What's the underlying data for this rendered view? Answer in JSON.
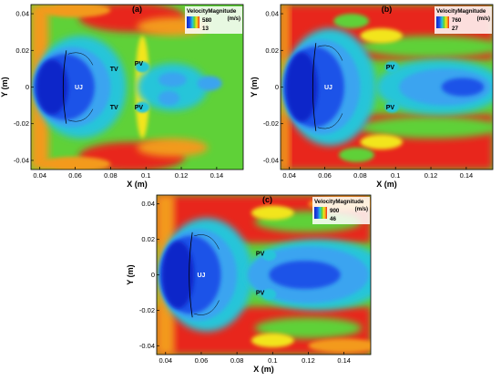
{
  "figure": {
    "palette": {
      "red": "#e8261f",
      "orange": "#f39a1b",
      "yellow": "#f2e51b",
      "green": "#5fd138",
      "cyan": "#27c5d9",
      "light_blue": "#3aa4f0",
      "blue": "#1f52e8",
      "dark_blue": "#0d27c9"
    }
  },
  "chart_data": [
    {
      "type": "heatmap",
      "panel_label": "(a)",
      "xlabel": "X (m)",
      "ylabel": "Y (m)",
      "xlim": [
        0.035,
        0.155
      ],
      "ylim": [
        -0.045,
        0.045
      ],
      "x_ticks": [
        0.04,
        0.06,
        0.08,
        0.1,
        0.12,
        0.14
      ],
      "x_tick_labels": [
        "0.04",
        "0.06",
        "0.08",
        "0.1",
        "0.12",
        "0.14"
      ],
      "y_ticks": [
        0.04,
        0.02,
        0,
        -0.02,
        -0.04
      ],
      "y_tick_labels": [
        "0.04",
        "0.02",
        "0",
        "-0.02",
        "-0.04"
      ],
      "legend": {
        "title": "VelocityMagnitude",
        "unit": "(m/s)",
        "max": "580",
        "min": "13",
        "placement": "top-right"
      },
      "annotations": [
        {
          "text": "UJ",
          "x": 0.062,
          "y": 0.0
        },
        {
          "text": "TV",
          "x": 0.082,
          "y": 0.01
        },
        {
          "text": "TV",
          "x": 0.082,
          "y": -0.011
        },
        {
          "text": "PV",
          "x": 0.096,
          "y": 0.013
        },
        {
          "text": "PV",
          "x": 0.096,
          "y": -0.011
        }
      ]
    },
    {
      "type": "heatmap",
      "panel_label": "(b)",
      "xlabel": "X (m)",
      "ylabel": "Y (m)",
      "xlim": [
        0.035,
        0.155
      ],
      "ylim": [
        -0.045,
        0.045
      ],
      "x_ticks": [
        0.04,
        0.06,
        0.08,
        0.1,
        0.12,
        0.14
      ],
      "x_tick_labels": [
        "0.04",
        "0.06",
        "0.08",
        "0.1",
        "0.12",
        "0.14"
      ],
      "y_ticks": [
        0.04,
        0.02,
        0,
        -0.02,
        -0.04
      ],
      "y_tick_labels": [
        "0.04",
        "0.02",
        "0",
        "-0.02",
        "-0.04"
      ],
      "legend": {
        "title": "VelocityMagnitude",
        "unit": "(m/s)",
        "max": "760",
        "min": "27",
        "placement": "top-right"
      },
      "annotations": [
        {
          "text": "UJ",
          "x": 0.062,
          "y": 0.0
        },
        {
          "text": "PV",
          "x": 0.097,
          "y": 0.011
        },
        {
          "text": "PV",
          "x": 0.097,
          "y": -0.011
        }
      ]
    },
    {
      "type": "heatmap",
      "panel_label": "(c)",
      "xlabel": "X (m)",
      "ylabel": "Y (m)",
      "xlim": [
        0.035,
        0.155
      ],
      "ylim": [
        -0.045,
        0.045
      ],
      "x_ticks": [
        0.04,
        0.06,
        0.08,
        0.1,
        0.12,
        0.14
      ],
      "x_tick_labels": [
        "0.04",
        "0.06",
        "0.08",
        "0.1",
        "0.12",
        "0.14"
      ],
      "y_ticks": [
        0.04,
        0.02,
        0,
        -0.02,
        -0.04
      ],
      "y_tick_labels": [
        "0.04",
        "0.02",
        "0",
        "-0.02",
        "-0.04"
      ],
      "legend": {
        "title": "VelocityMagnitude",
        "unit": "(m/s)",
        "max": "900",
        "min": "46",
        "placement": "top-right"
      },
      "annotations": [
        {
          "text": "UJ",
          "x": 0.06,
          "y": 0.0
        },
        {
          "text": "PV",
          "x": 0.093,
          "y": 0.012
        },
        {
          "text": "PV",
          "x": 0.093,
          "y": -0.01
        }
      ]
    }
  ]
}
